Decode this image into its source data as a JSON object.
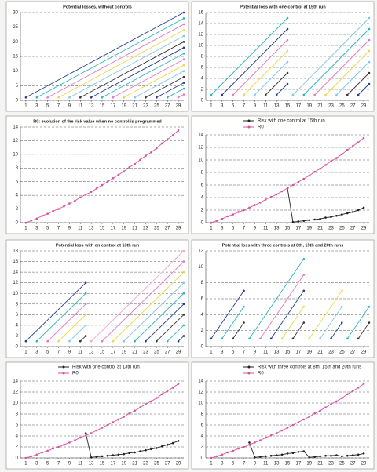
{
  "chart_data": [
    {
      "type": "line",
      "title": "Potential losses, without controls",
      "xlim": [
        0,
        30
      ],
      "xticks": [
        1,
        3,
        5,
        7,
        9,
        11,
        13,
        15,
        17,
        19,
        21,
        23,
        25,
        27,
        29
      ],
      "ylim": [
        0,
        30
      ],
      "yticks": [
        0,
        5,
        10,
        15,
        20,
        25,
        30
      ],
      "series": [
        {
          "x": [
            1,
            30
          ],
          "values": [
            1,
            30
          ],
          "color": "#1f3a93"
        },
        {
          "x": [
            3,
            30
          ],
          "values": [
            1,
            28
          ],
          "color": "#2bb3c0"
        },
        {
          "x": [
            5,
            30
          ],
          "values": [
            1,
            26
          ],
          "color": "#e377c2"
        },
        {
          "x": [
            7,
            30
          ],
          "values": [
            1,
            24
          ],
          "color": "#e8d84a"
        },
        {
          "x": [
            9,
            30
          ],
          "values": [
            1,
            22
          ],
          "color": "#7fc6e8"
        },
        {
          "x": [
            11,
            30
          ],
          "values": [
            1,
            20
          ],
          "color": "#333333"
        },
        {
          "x": [
            13,
            30
          ],
          "values": [
            1,
            18
          ],
          "color": "#1f3a93"
        },
        {
          "x": [
            15,
            30
          ],
          "values": [
            1,
            16
          ],
          "color": "#2bb3c0"
        },
        {
          "x": [
            17,
            30
          ],
          "values": [
            1,
            14
          ],
          "color": "#e377c2"
        },
        {
          "x": [
            19,
            30
          ],
          "values": [
            1,
            12
          ],
          "color": "#e8d84a"
        },
        {
          "x": [
            21,
            30
          ],
          "values": [
            1,
            10
          ],
          "color": "#7fc6e8"
        },
        {
          "x": [
            23,
            30
          ],
          "values": [
            1,
            8
          ],
          "color": "#333333"
        },
        {
          "x": [
            25,
            30
          ],
          "values": [
            1,
            6
          ],
          "color": "#1f3a93"
        },
        {
          "x": [
            27,
            30
          ],
          "values": [
            1,
            4
          ],
          "color": "#2bb3c0"
        },
        {
          "x": [
            29,
            30
          ],
          "values": [
            1,
            2
          ],
          "color": "#e377c2"
        }
      ]
    },
    {
      "type": "line",
      "title": "Potential loss with one control at 15th run",
      "xlim": [
        0,
        30
      ],
      "xticks": [
        1,
        3,
        5,
        7,
        9,
        11,
        13,
        15,
        17,
        19,
        21,
        23,
        25,
        27,
        29
      ],
      "ylim": [
        0,
        16
      ],
      "yticks": [
        0,
        2,
        4,
        6,
        8,
        10,
        12,
        14,
        16
      ],
      "series": [
        {
          "x": [
            1,
            15
          ],
          "values": [
            1,
            15
          ],
          "color": "#2bb3c0"
        },
        {
          "x": [
            3,
            15
          ],
          "values": [
            1,
            13
          ],
          "color": "#1f3a93"
        },
        {
          "x": [
            5,
            15
          ],
          "values": [
            1,
            11
          ],
          "color": "#e377c2"
        },
        {
          "x": [
            7,
            15
          ],
          "values": [
            1,
            9
          ],
          "color": "#e8d84a"
        },
        {
          "x": [
            9,
            15
          ],
          "values": [
            1,
            7
          ],
          "color": "#7fc6e8"
        },
        {
          "x": [
            11,
            15
          ],
          "values": [
            1,
            5
          ],
          "color": "#333333"
        },
        {
          "x": [
            13,
            15
          ],
          "values": [
            1,
            3
          ],
          "color": "#1f3a93"
        },
        {
          "x": [
            16,
            30
          ],
          "values": [
            1,
            15
          ],
          "color": "#7fc6e8"
        },
        {
          "x": [
            18,
            30
          ],
          "values": [
            1,
            13
          ],
          "color": "#2bb3c0"
        },
        {
          "x": [
            20,
            30
          ],
          "values": [
            1,
            11
          ],
          "color": "#e377c2"
        },
        {
          "x": [
            22,
            30
          ],
          "values": [
            1,
            9
          ],
          "color": "#e8d84a"
        },
        {
          "x": [
            24,
            30
          ],
          "values": [
            1,
            7
          ],
          "color": "#7fc6e8"
        },
        {
          "x": [
            26,
            30
          ],
          "values": [
            1,
            5
          ],
          "color": "#333333"
        },
        {
          "x": [
            28,
            30
          ],
          "values": [
            1,
            3
          ],
          "color": "#1f3a93"
        }
      ]
    },
    {
      "type": "line",
      "title": "R0: evolution of the risk value when no control is programmed",
      "xlim": [
        0,
        30
      ],
      "xticks": [
        1,
        3,
        5,
        7,
        9,
        11,
        13,
        15,
        17,
        19,
        21,
        23,
        25,
        27,
        29
      ],
      "ylim": [
        0,
        14
      ],
      "yticks": [
        0,
        2,
        4,
        6,
        8,
        10,
        12,
        14
      ],
      "x": [
        1,
        2,
        3,
        4,
        5,
        6,
        7,
        8,
        9,
        10,
        11,
        12,
        13,
        14,
        15,
        16,
        17,
        18,
        19,
        20,
        21,
        22,
        23,
        24,
        25,
        26,
        27,
        28,
        29
      ],
      "series": [
        {
          "color": "#d9539a",
          "values": [
            0,
            0.3,
            0.6,
            1,
            1.3,
            1.7,
            2,
            2.4,
            2.8,
            3.2,
            3.7,
            4.1,
            4.5,
            5,
            5.5,
            6,
            6.5,
            7,
            7.5,
            8.1,
            8.6,
            9.2,
            9.8,
            10.3,
            10.9,
            11.6,
            12.2,
            12.8,
            13.5
          ]
        }
      ]
    },
    {
      "type": "line",
      "xlim": [
        0,
        30
      ],
      "xticks": [
        1,
        3,
        5,
        7,
        9,
        11,
        13,
        15,
        17,
        19,
        21,
        23,
        25,
        27,
        29
      ],
      "ylim": [
        0,
        14
      ],
      "yticks": [
        0,
        2,
        4,
        6,
        8,
        10,
        12,
        14
      ],
      "x": [
        1,
        2,
        3,
        4,
        5,
        6,
        7,
        8,
        9,
        10,
        11,
        12,
        13,
        14,
        15,
        16,
        17,
        18,
        19,
        20,
        21,
        22,
        23,
        24,
        25,
        26,
        27,
        28,
        29
      ],
      "series": [
        {
          "name": "Risk with one control at 15th run",
          "color": "#222222",
          "values": [
            null,
            null,
            null,
            null,
            null,
            null,
            null,
            null,
            null,
            null,
            null,
            null,
            null,
            null,
            5.5,
            0.1,
            0.2,
            0.3,
            0.4,
            0.5,
            0.6,
            0.8,
            0.9,
            1.1,
            1.3,
            1.5,
            1.7,
            2,
            2.4
          ]
        },
        {
          "name": "R0",
          "color": "#d9539a",
          "values": [
            0,
            0.3,
            0.6,
            1,
            1.3,
            1.7,
            2,
            2.4,
            2.8,
            3.2,
            3.7,
            4.1,
            4.5,
            5,
            5.5,
            6,
            6.5,
            7,
            7.5,
            8.1,
            8.6,
            9.2,
            9.8,
            10.3,
            10.9,
            11.6,
            12.2,
            12.8,
            13.5
          ]
        }
      ]
    },
    {
      "type": "line",
      "title": "Potential loss with on control at 13th run",
      "xlim": [
        0,
        30
      ],
      "xticks": [
        1,
        3,
        5,
        7,
        9,
        11,
        13,
        15,
        17,
        19,
        21,
        23,
        25,
        27,
        29
      ],
      "ylim": [
        0,
        18
      ],
      "yticks": [
        0,
        2,
        4,
        6,
        8,
        10,
        12,
        14,
        16,
        18
      ],
      "series": [
        {
          "x": [
            1,
            12
          ],
          "values": [
            1,
            12
          ],
          "color": "#1f3a93"
        },
        {
          "x": [
            3,
            12
          ],
          "values": [
            1,
            10
          ],
          "color": "#2bb3c0"
        },
        {
          "x": [
            5,
            12
          ],
          "values": [
            1,
            8
          ],
          "color": "#e377c2"
        },
        {
          "x": [
            7,
            12
          ],
          "values": [
            1,
            6
          ],
          "color": "#e8d84a"
        },
        {
          "x": [
            9,
            12
          ],
          "values": [
            1,
            4
          ],
          "color": "#7fc6e8"
        },
        {
          "x": [
            11,
            12
          ],
          "values": [
            1,
            2
          ],
          "color": "#333333"
        },
        {
          "x": [
            13,
            30
          ],
          "values": [
            1,
            18
          ],
          "color": "#f4a6c8"
        },
        {
          "x": [
            15,
            30
          ],
          "values": [
            1,
            16
          ],
          "color": "#e377c2"
        },
        {
          "x": [
            17,
            30
          ],
          "values": [
            1,
            14
          ],
          "color": "#e8d84a"
        },
        {
          "x": [
            19,
            30
          ],
          "values": [
            1,
            12
          ],
          "color": "#7fc6e8"
        },
        {
          "x": [
            21,
            30
          ],
          "values": [
            1,
            10
          ],
          "color": "#2bb3c0"
        },
        {
          "x": [
            23,
            30
          ],
          "values": [
            1,
            8
          ],
          "color": "#1f3a93"
        },
        {
          "x": [
            25,
            30
          ],
          "values": [
            1,
            6
          ],
          "color": "#333333"
        },
        {
          "x": [
            27,
            30
          ],
          "values": [
            1,
            4
          ],
          "color": "#2bb3c0"
        },
        {
          "x": [
            29,
            30
          ],
          "values": [
            1,
            2
          ],
          "color": "#1f3a93"
        }
      ]
    },
    {
      "type": "line",
      "title": "Potential loss with three controls at 8th, 15th and 20th runs",
      "xlim": [
        0,
        30
      ],
      "xticks": [
        1,
        3,
        5,
        7,
        9,
        11,
        13,
        15,
        17,
        19,
        21,
        23,
        25,
        27,
        29
      ],
      "ylim": [
        0,
        12
      ],
      "yticks": [
        0,
        2,
        4,
        6,
        8,
        10,
        12
      ],
      "series": [
        {
          "x": [
            1,
            7
          ],
          "values": [
            1,
            7
          ],
          "color": "#1f3a93"
        },
        {
          "x": [
            3,
            7
          ],
          "values": [
            1,
            5
          ],
          "color": "#2bb3c0"
        },
        {
          "x": [
            5,
            7
          ],
          "values": [
            1,
            3
          ],
          "color": "#333333"
        },
        {
          "x": [
            8,
            18
          ],
          "values": [
            1,
            11
          ],
          "color": "#2bb3c0"
        },
        {
          "x": [
            10,
            18
          ],
          "values": [
            1,
            9
          ],
          "color": "#e377c2"
        },
        {
          "x": [
            12,
            18
          ],
          "values": [
            1,
            7
          ],
          "color": "#1f3a93"
        },
        {
          "x": [
            14,
            18
          ],
          "values": [
            1,
            5
          ],
          "color": "#e8d84a"
        },
        {
          "x": [
            16,
            18
          ],
          "values": [
            1,
            3
          ],
          "color": "#333333"
        },
        {
          "x": [
            19,
            25
          ],
          "values": [
            1,
            7
          ],
          "color": "#e8d84a"
        },
        {
          "x": [
            21,
            25
          ],
          "values": [
            1,
            5
          ],
          "color": "#7fc6e8"
        },
        {
          "x": [
            23,
            25
          ],
          "values": [
            1,
            3
          ],
          "color": "#1f3a93"
        },
        {
          "x": [
            26,
            30
          ],
          "values": [
            1,
            5
          ],
          "color": "#2bb3c0"
        },
        {
          "x": [
            28,
            30
          ],
          "values": [
            1,
            3
          ],
          "color": "#333333"
        }
      ]
    },
    {
      "type": "line",
      "xlim": [
        0,
        30
      ],
      "xticks": [
        1,
        3,
        5,
        7,
        9,
        11,
        13,
        15,
        17,
        19,
        21,
        23,
        25,
        27,
        29
      ],
      "ylim": [
        0,
        14
      ],
      "yticks": [
        0,
        2,
        4,
        6,
        8,
        10,
        12,
        14
      ],
      "x": [
        1,
        2,
        3,
        4,
        5,
        6,
        7,
        8,
        9,
        10,
        11,
        12,
        13,
        14,
        15,
        16,
        17,
        18,
        19,
        20,
        21,
        22,
        23,
        24,
        25,
        26,
        27,
        28,
        29
      ],
      "series": [
        {
          "name": "Risk with one control at 13th run",
          "color": "#222222",
          "values": [
            null,
            null,
            null,
            null,
            null,
            null,
            null,
            null,
            null,
            null,
            null,
            4.5,
            0.1,
            0.2,
            0.3,
            0.4,
            0.5,
            0.6,
            0.7,
            0.9,
            1,
            1.2,
            1.4,
            1.6,
            1.8,
            2.1,
            2.4,
            2.7,
            3.1
          ]
        },
        {
          "name": "R0",
          "color": "#d9539a",
          "values": [
            0,
            0.3,
            0.6,
            1,
            1.3,
            1.7,
            2,
            2.4,
            2.8,
            3.2,
            3.7,
            4.1,
            4.5,
            5,
            5.5,
            6,
            6.5,
            7,
            7.5,
            8.1,
            8.6,
            9.2,
            9.8,
            10.3,
            10.9,
            11.6,
            12.2,
            12.8,
            13.5
          ]
        }
      ]
    },
    {
      "type": "line",
      "xlim": [
        0,
        30
      ],
      "xticks": [
        1,
        3,
        5,
        7,
        9,
        11,
        13,
        15,
        17,
        19,
        21,
        23,
        25,
        27,
        29
      ],
      "ylim": [
        0,
        14
      ],
      "yticks": [
        0,
        2,
        4,
        6,
        8,
        10,
        12,
        14
      ],
      "x": [
        1,
        2,
        3,
        4,
        5,
        6,
        7,
        8,
        9,
        10,
        11,
        12,
        13,
        14,
        15,
        16,
        17,
        18,
        19,
        20,
        21,
        22,
        23,
        24,
        25,
        26,
        27,
        28,
        29
      ],
      "series": [
        {
          "name": "Risk with three controls at 8th, 15th and 20th runs",
          "color": "#222222",
          "values": [
            null,
            null,
            null,
            null,
            null,
            null,
            null,
            2.8,
            0.1,
            0.2,
            0.3,
            0.4,
            0.5,
            0.6,
            0.8,
            0.9,
            1.1,
            1.2,
            0.1,
            0.2,
            0.3,
            0.4,
            0.4,
            0.5,
            0.3,
            0.4,
            0.5,
            0.6,
            0.8
          ]
        },
        {
          "name": "R0",
          "color": "#d9539a",
          "values": [
            0,
            0.3,
            0.6,
            1,
            1.3,
            1.7,
            2,
            2.4,
            2.8,
            3.2,
            3.7,
            4.1,
            4.5,
            5,
            5.5,
            6,
            6.5,
            7,
            7.5,
            8.1,
            8.6,
            9.2,
            9.8,
            10.3,
            10.9,
            11.6,
            12.2,
            12.8,
            13.5
          ]
        }
      ]
    }
  ]
}
